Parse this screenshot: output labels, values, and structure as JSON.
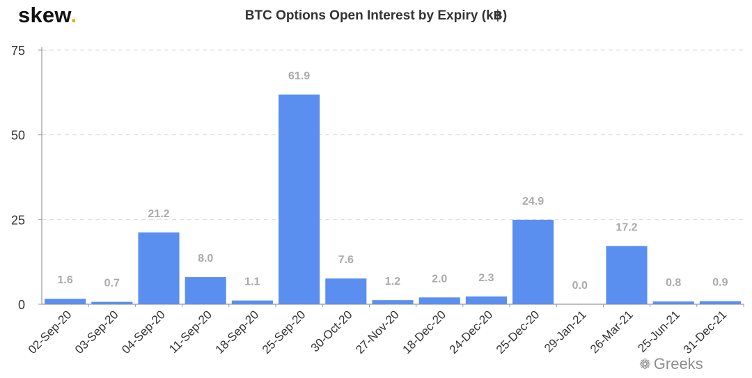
{
  "brand": {
    "name": "skew",
    "dot": "."
  },
  "watermark": {
    "icon": "wechat-icon",
    "text": "Greeks"
  },
  "colors": {
    "bar": "#5b8fef",
    "bar_dark": "#4f7fdf",
    "axis": "#999999",
    "grid": "#d9d9d9",
    "value_label": "#aaaaaa",
    "tick_label": "#333333",
    "brand_dot": "#f2a900"
  },
  "chart_data": {
    "type": "bar",
    "title": "BTC Options Open Interest by Expiry (k฿)",
    "xlabel": "",
    "ylabel": "",
    "categories": [
      "02-Sep-20",
      "03-Sep-20",
      "04-Sep-20",
      "11-Sep-20",
      "18-Sep-20",
      "25-Sep-20",
      "30-Oct-20",
      "27-Nov-20",
      "18-Dec-20",
      "24-Dec-20",
      "25-Dec-20",
      "29-Jan-21",
      "26-Mar-21",
      "25-Jun-21",
      "31-Dec-21"
    ],
    "values": [
      1.6,
      0.7,
      21.2,
      8.0,
      1.1,
      61.9,
      7.6,
      1.2,
      2.0,
      2.3,
      24.9,
      0.0,
      17.2,
      0.8,
      0.9
    ],
    "value_labels": [
      "1.6",
      "0.7",
      "21.2",
      "8.0",
      "1.1",
      "61.9",
      "7.6",
      "1.2",
      "2.0",
      "2.3",
      "24.9",
      "0.0",
      "17.2",
      "0.8",
      "0.9"
    ],
    "ylim": [
      0,
      75
    ],
    "yticks": [
      0,
      25,
      50,
      75
    ],
    "grid": true,
    "legend": "none"
  }
}
